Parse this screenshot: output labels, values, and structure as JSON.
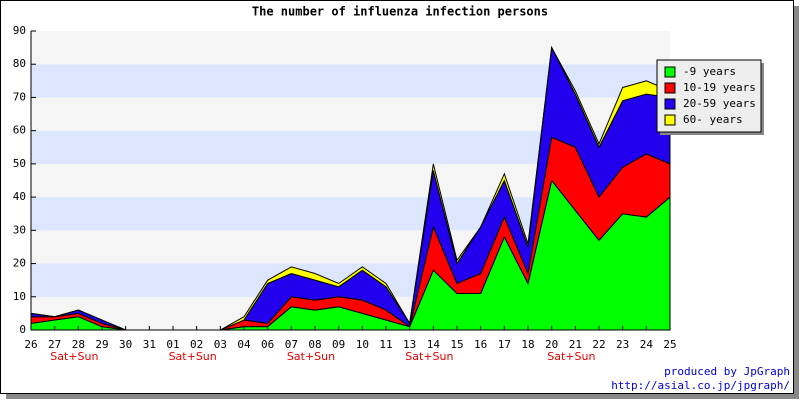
{
  "chart_data": {
    "type": "stacked_area",
    "title": "The number of influenza infection persons",
    "categories": [
      "26",
      "27",
      "28",
      "29",
      "30",
      "31",
      "01",
      "02",
      "03",
      "04",
      "06",
      "07",
      "08",
      "09",
      "10",
      "11",
      "13",
      "14",
      "15",
      "16",
      "17",
      "18",
      "20",
      "21",
      "22",
      "23",
      "24",
      "25"
    ],
    "x_sublabels": [
      null,
      null,
      "Sat+Sun",
      null,
      null,
      null,
      null,
      "Sat+Sun",
      null,
      null,
      null,
      null,
      "Sat+Sun",
      null,
      null,
      null,
      null,
      "Sat+Sun",
      null,
      null,
      null,
      null,
      null,
      "Sat+Sun",
      null,
      null,
      null,
      null
    ],
    "series": [
      {
        "name": "-9 years",
        "color": "#00ff00",
        "values": [
          2,
          3,
          4,
          1,
          0,
          0,
          0,
          0,
          0,
          1,
          1,
          7,
          6,
          7,
          5,
          3,
          1,
          18,
          11,
          11,
          28,
          14,
          45,
          36,
          27,
          35,
          34,
          40
        ]
      },
      {
        "name": "10-19 years",
        "color": "#ff0000",
        "values": [
          2,
          1,
          1,
          1,
          0,
          0,
          0,
          0,
          0,
          2,
          1,
          3,
          3,
          3,
          4,
          3,
          0,
          13,
          3,
          6,
          6,
          3,
          13,
          19,
          13,
          14,
          19,
          10
        ]
      },
      {
        "name": "20-59 years",
        "color": "#2200ee",
        "values": [
          1,
          0,
          1,
          1,
          0,
          0,
          0,
          0,
          0,
          0,
          12,
          7,
          6,
          3,
          9,
          7,
          1,
          17,
          6,
          14,
          11,
          8,
          27,
          16,
          15,
          20,
          18,
          20
        ]
      },
      {
        "name": "60- years",
        "color": "#ffff00",
        "values": [
          0,
          0,
          0,
          0,
          0,
          0,
          0,
          0,
          0,
          1,
          1,
          2,
          2,
          1,
          1,
          1,
          0,
          2,
          1,
          0,
          2,
          1,
          0,
          1,
          1,
          4,
          4,
          2
        ]
      }
    ],
    "ylim": [
      0,
      90
    ],
    "yticks": [
      0,
      10,
      20,
      30,
      40,
      50,
      60,
      70,
      80,
      90
    ],
    "band_colors": [
      "#f5f5f5",
      "#dde6ff"
    ],
    "legend": "right",
    "footer": [
      "produced by JpGraph",
      "http://asial.co.jp/jpgraph/"
    ]
  }
}
